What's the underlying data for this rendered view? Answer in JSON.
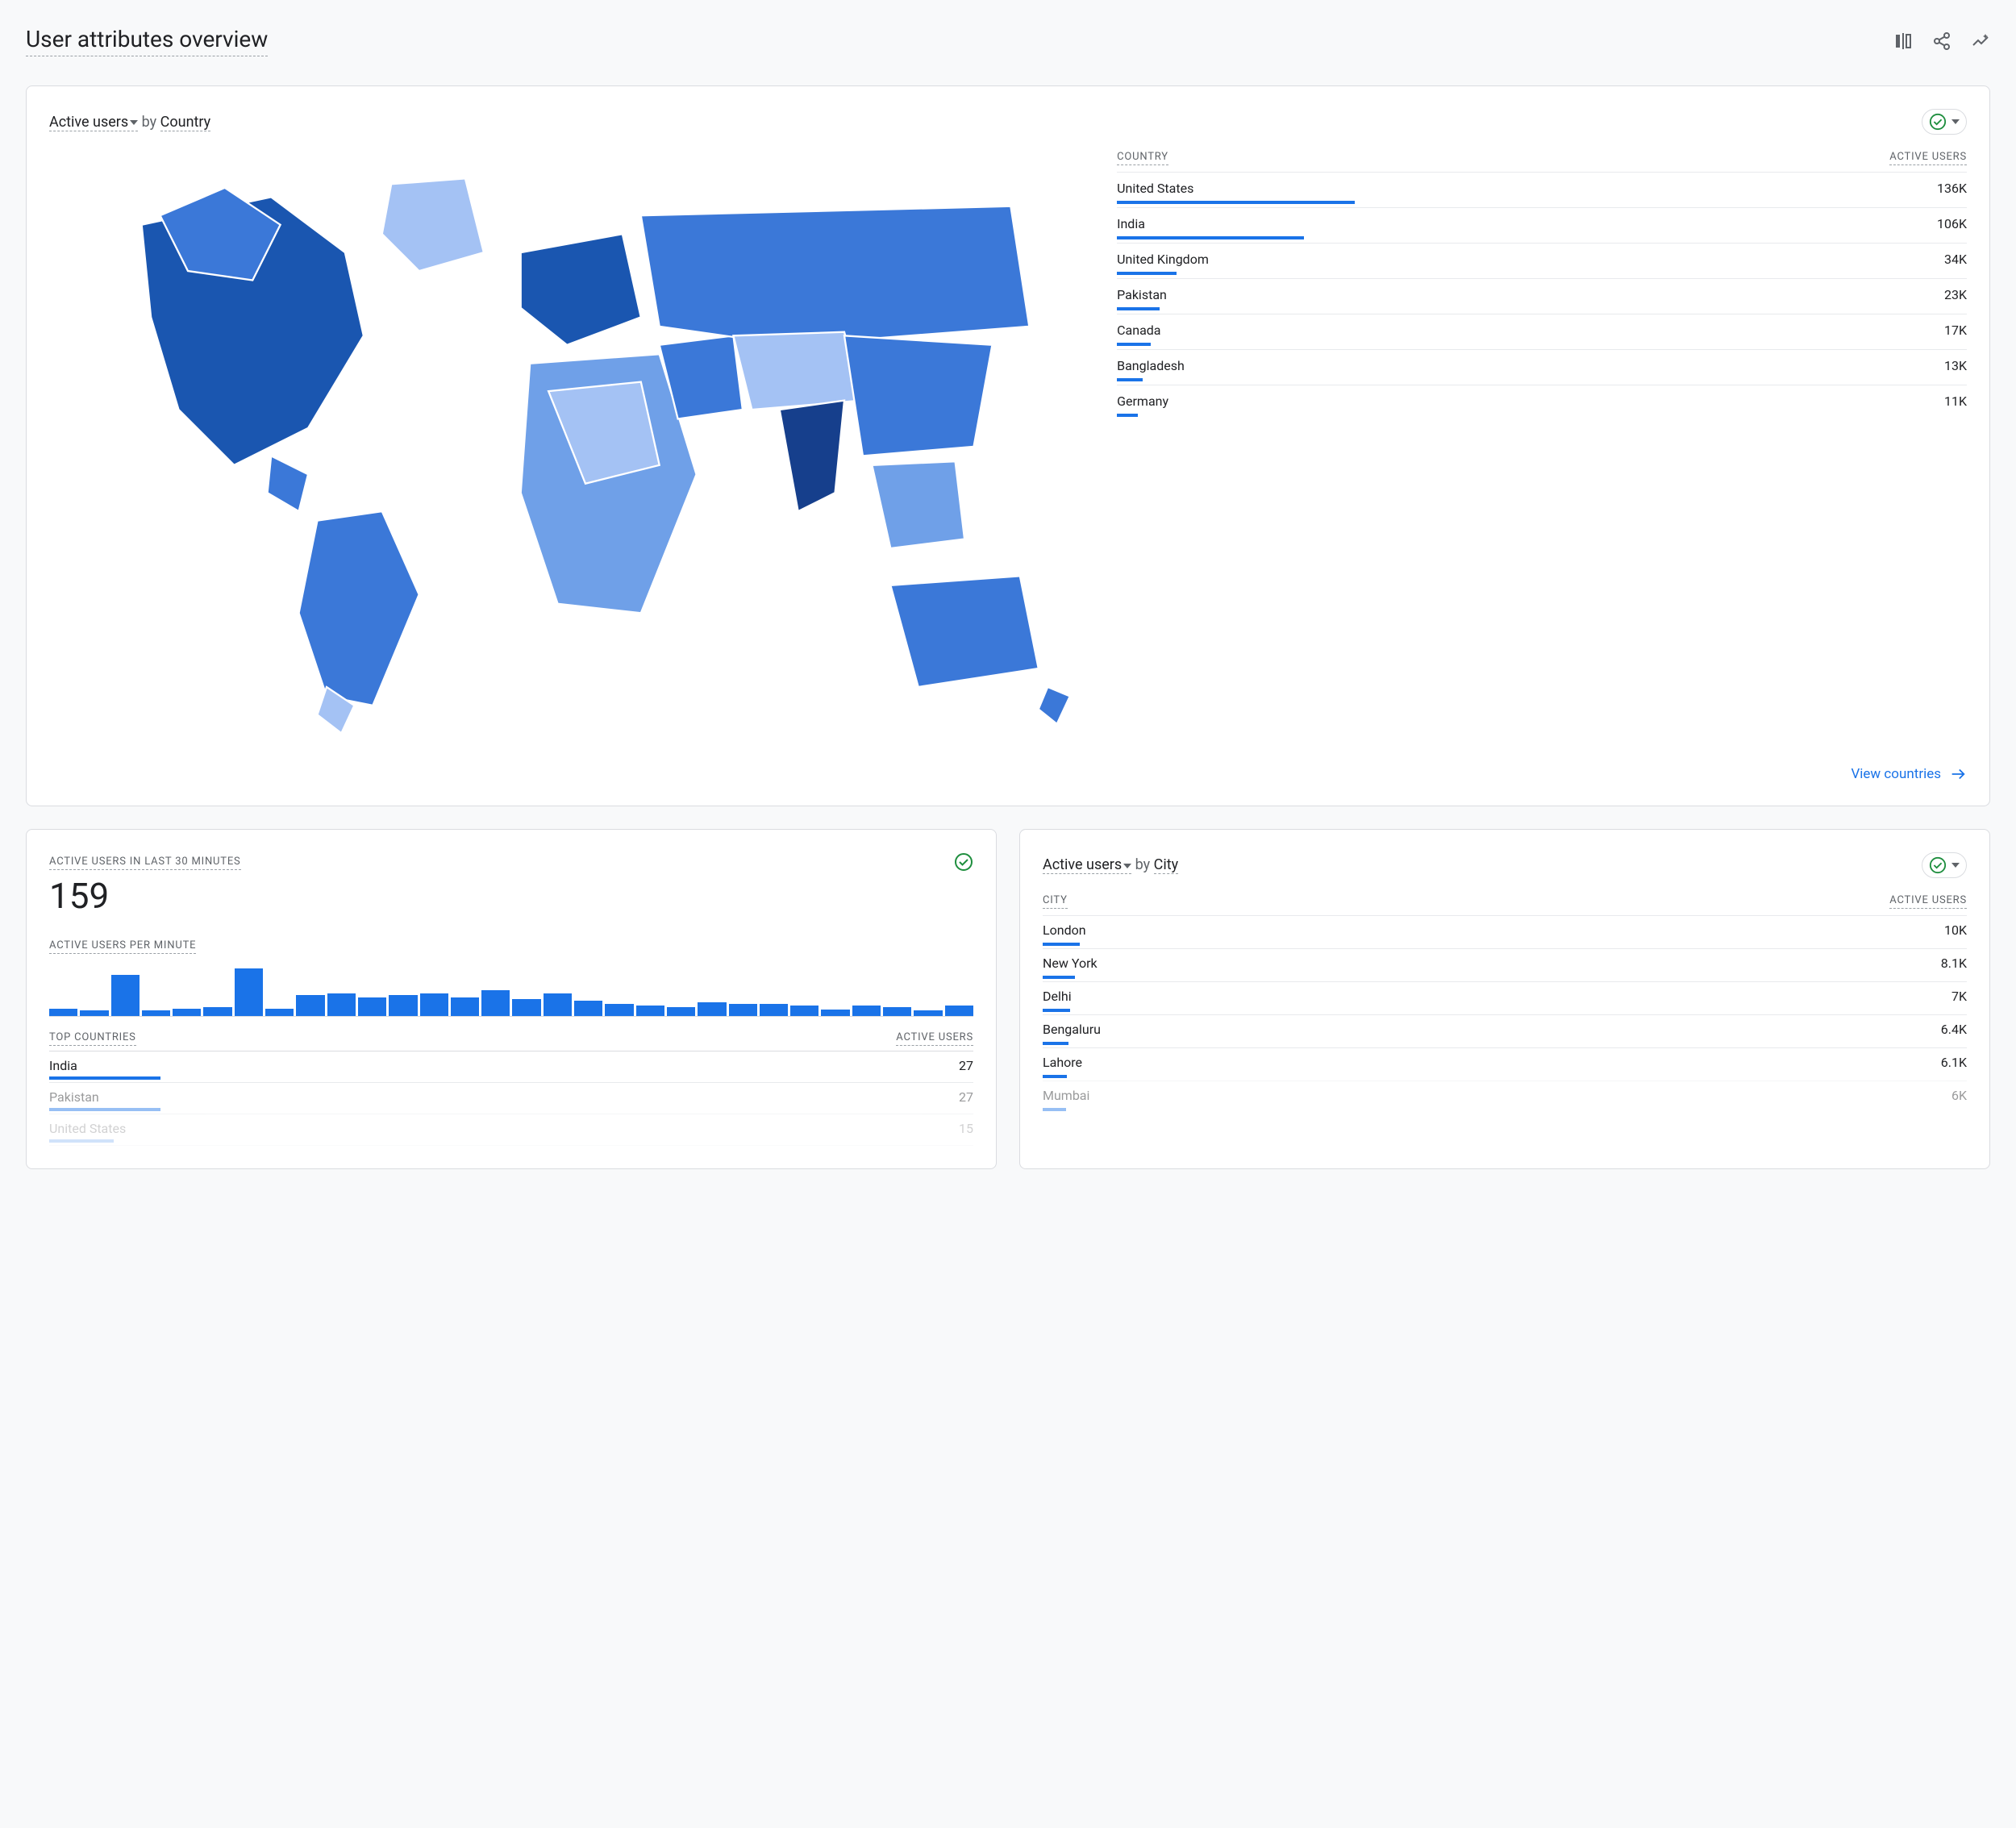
{
  "page": {
    "title": "User attributes overview"
  },
  "colors": {
    "primary_blue": "#1a73e8",
    "bar_blue": "#1a73e8",
    "link_blue": "#1a73e8",
    "check_green": "#1e8e3e",
    "text_primary": "#202124",
    "text_secondary": "#5f6368",
    "border": "#dadce0",
    "background": "#f8f9fa",
    "map_dark": "#1a56b0",
    "map_mid": "#3b78d8",
    "map_light": "#a4c2f4"
  },
  "country_card": {
    "metric_label": "Active users",
    "by_label": "by",
    "dimension_label": "Country",
    "table_headers": {
      "dim": "COUNTRY",
      "metric": "ACTIVE USERS"
    },
    "rows": [
      {
        "name": "United States",
        "value": "136K",
        "bar_pct": 28
      },
      {
        "name": "India",
        "value": "106K",
        "bar_pct": 22
      },
      {
        "name": "United Kingdom",
        "value": "34K",
        "bar_pct": 7
      },
      {
        "name": "Pakistan",
        "value": "23K",
        "bar_pct": 5
      },
      {
        "name": "Canada",
        "value": "17K",
        "bar_pct": 4
      },
      {
        "name": "Bangladesh",
        "value": "13K",
        "bar_pct": 3
      },
      {
        "name": "Germany",
        "value": "11K",
        "bar_pct": 2.5
      }
    ],
    "view_link": "View countries"
  },
  "realtime_card": {
    "title": "ACTIVE USERS IN LAST 30 MINUTES",
    "value": "159",
    "per_minute_label": "ACTIVE USERS PER MINUTE",
    "per_minute_bars": [
      8,
      6,
      48,
      6,
      8,
      10,
      56,
      8,
      24,
      26,
      22,
      24,
      26,
      22,
      30,
      20,
      26,
      18,
      14,
      12,
      10,
      16,
      14,
      14,
      12,
      7,
      12,
      10,
      6,
      12
    ],
    "per_minute_color": "#1a73e8",
    "top_countries_headers": {
      "dim": "TOP COUNTRIES",
      "metric": "ACTIVE USERS"
    },
    "top_countries": [
      {
        "name": "India",
        "value": "27",
        "bar_pct": 12,
        "fade": ""
      },
      {
        "name": "Pakistan",
        "value": "27",
        "bar_pct": 12,
        "fade": "fade"
      },
      {
        "name": "United States",
        "value": "15",
        "bar_pct": 7,
        "fade": "fade2"
      }
    ]
  },
  "city_card": {
    "metric_label": "Active users",
    "by_label": "by",
    "dimension_label": "City",
    "table_headers": {
      "dim": "CITY",
      "metric": "ACTIVE USERS"
    },
    "rows": [
      {
        "name": "London",
        "value": "10K",
        "bar_pct": 4,
        "fade": ""
      },
      {
        "name": "New York",
        "value": "8.1K",
        "bar_pct": 3.5,
        "fade": ""
      },
      {
        "name": "Delhi",
        "value": "7K",
        "bar_pct": 3,
        "fade": ""
      },
      {
        "name": "Bengaluru",
        "value": "6.4K",
        "bar_pct": 2.8,
        "fade": ""
      },
      {
        "name": "Lahore",
        "value": "6.1K",
        "bar_pct": 2.6,
        "fade": ""
      },
      {
        "name": "Mumbai",
        "value": "6K",
        "bar_pct": 2.5,
        "fade": "fade"
      }
    ]
  }
}
